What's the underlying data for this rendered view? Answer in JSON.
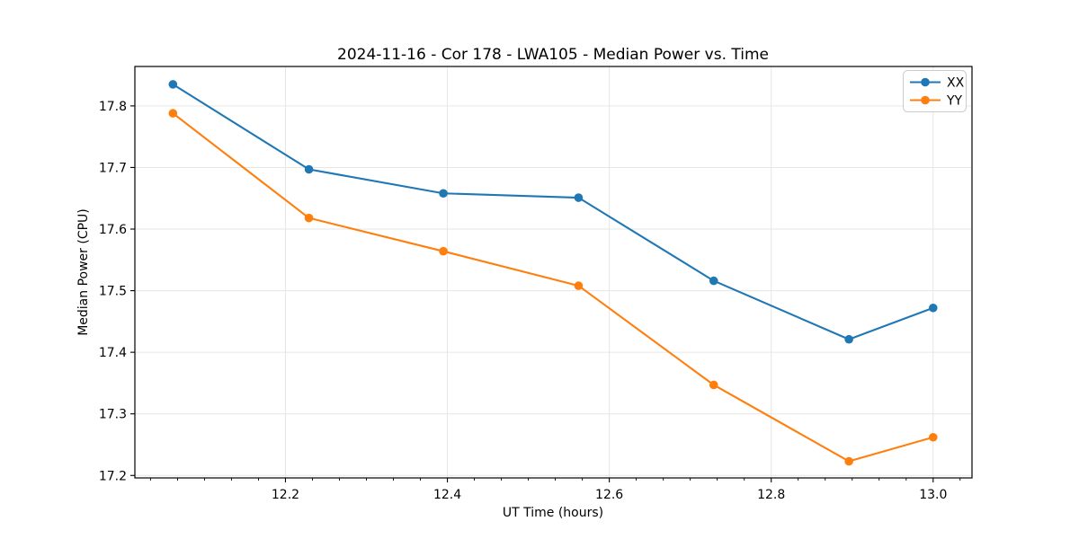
{
  "chart_data": {
    "type": "line",
    "title": "2024-11-16 - Cor 178 - LWA105 - Median Power vs. Time",
    "xlabel": "UT Time (hours)",
    "ylabel": "Median Power (CPU)",
    "xlim": [
      12.014,
      13.048
    ],
    "ylim": [
      17.196,
      17.864
    ],
    "x_major_ticks": [
      12.2,
      12.4,
      12.6,
      12.8,
      13.0
    ],
    "x_minor_ticks": [
      12.0333,
      12.0667,
      12.1,
      12.1333,
      12.1667,
      12.2333,
      12.2667,
      12.3,
      12.3333,
      12.3667,
      12.4333,
      12.4667,
      12.5,
      12.5333,
      12.5667,
      12.6333,
      12.6667,
      12.7,
      12.7333,
      12.7667,
      12.8333,
      12.8667,
      12.9,
      12.9333,
      12.9667,
      13.0333
    ],
    "y_major_ticks": [
      17.2,
      17.3,
      17.4,
      17.5,
      17.6,
      17.7,
      17.8
    ],
    "grid": true,
    "grid_color": "#e6e6e6",
    "spine_color": "#000000",
    "legend_position": "upper right",
    "x": [
      12.061,
      12.229,
      12.395,
      12.562,
      12.729,
      12.896,
      13.0
    ],
    "series": [
      {
        "name": "XX",
        "color": "#1f77b4",
        "values": [
          17.835,
          17.697,
          17.658,
          17.651,
          17.516,
          17.421,
          17.472
        ]
      },
      {
        "name": "YY",
        "color": "#ff7f0e",
        "values": [
          17.788,
          17.618,
          17.564,
          17.508,
          17.347,
          17.223,
          17.262
        ]
      }
    ]
  }
}
